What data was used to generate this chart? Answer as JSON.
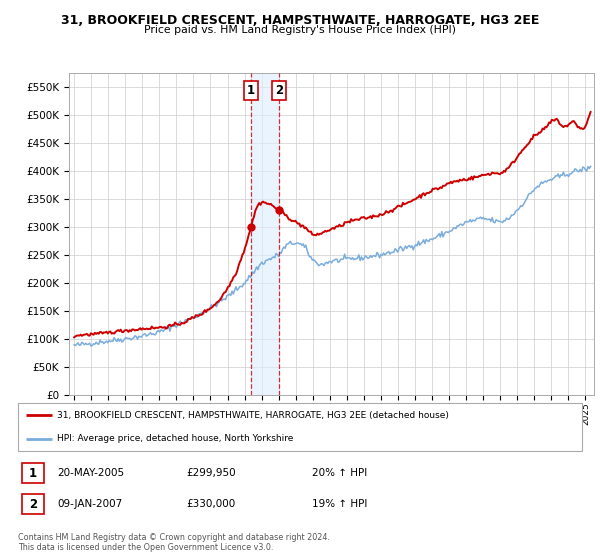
{
  "title_line1": "31, BROOKFIELD CRESCENT, HAMPSTHWAITE, HARROGATE, HG3 2EE",
  "title_line2": "Price paid vs. HM Land Registry's House Price Index (HPI)",
  "ylim": [
    0,
    575000
  ],
  "xlim_start": 1994.7,
  "xlim_end": 2025.5,
  "yticks": [
    0,
    50000,
    100000,
    150000,
    200000,
    250000,
    300000,
    350000,
    400000,
    450000,
    500000,
    550000
  ],
  "ytick_labels": [
    "£0",
    "£50K",
    "£100K",
    "£150K",
    "£200K",
    "£250K",
    "£300K",
    "£350K",
    "£400K",
    "£450K",
    "£500K",
    "£550K"
  ],
  "xticks": [
    1995,
    1996,
    1997,
    1998,
    1999,
    2000,
    2001,
    2002,
    2003,
    2004,
    2005,
    2006,
    2007,
    2008,
    2009,
    2010,
    2011,
    2012,
    2013,
    2014,
    2015,
    2016,
    2017,
    2018,
    2019,
    2020,
    2021,
    2022,
    2023,
    2024,
    2025
  ],
  "property_color": "#cc0000",
  "hpi_color": "#7aacdc",
  "background_color": "#ffffff",
  "plot_bg_color": "#ffffff",
  "grid_color": "#cccccc",
  "sale1_x": 2005.38,
  "sale1_y": 299950,
  "sale2_x": 2007.03,
  "sale2_y": 330000,
  "sale1_label": "1",
  "sale2_label": "2",
  "sale1_date": "20-MAY-2005",
  "sale1_price": "£299,950",
  "sale1_hpi": "20% ↑ HPI",
  "sale2_date": "09-JAN-2007",
  "sale2_price": "£330,000",
  "sale2_hpi": "19% ↑ HPI",
  "legend_line1": "31, BROOKFIELD CRESCENT, HAMPSTHWAITE, HARROGATE, HG3 2EE (detached house)",
  "legend_line2": "HPI: Average price, detached house, North Yorkshire",
  "footnote1": "Contains HM Land Registry data © Crown copyright and database right 2024.",
  "footnote2": "This data is licensed under the Open Government Licence v3.0."
}
